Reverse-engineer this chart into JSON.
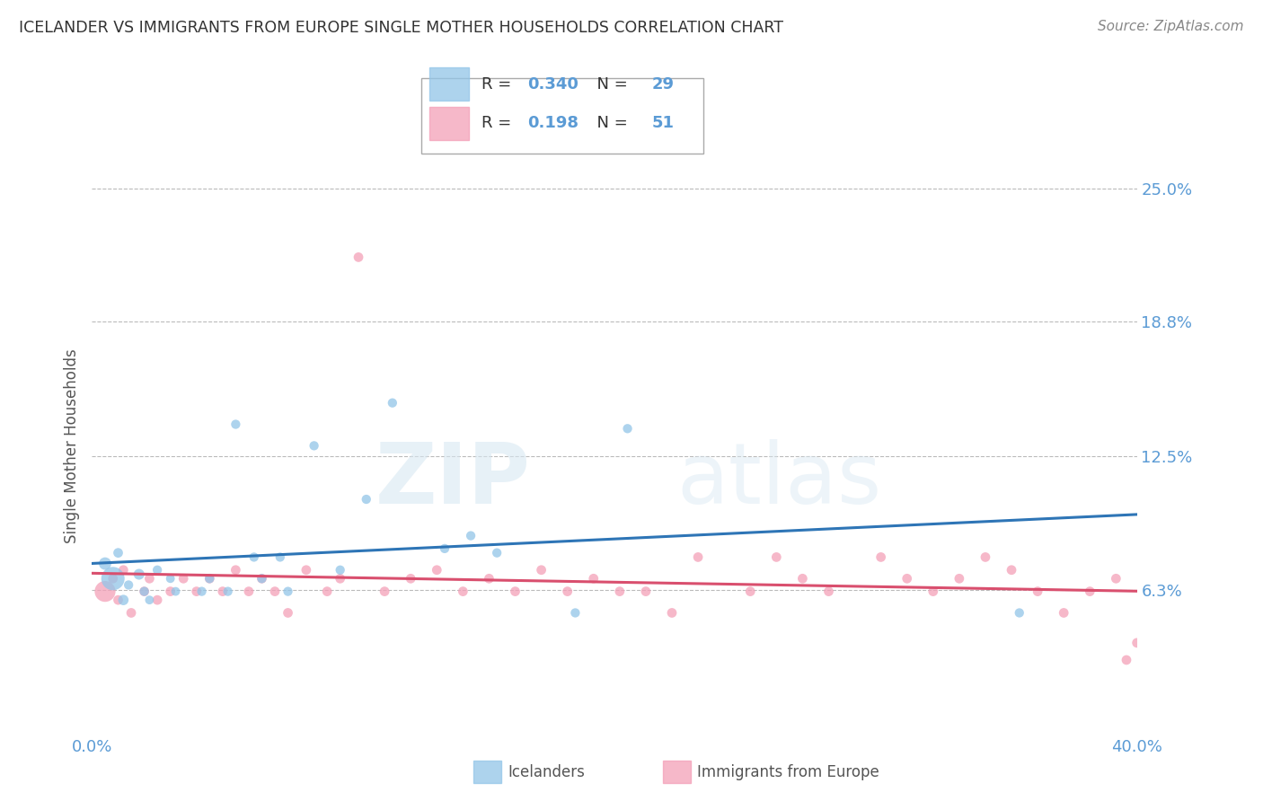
{
  "title": "ICELANDER VS IMMIGRANTS FROM EUROPE SINGLE MOTHER HOUSEHOLDS CORRELATION CHART",
  "source": "Source: ZipAtlas.com",
  "ylabel": "Single Mother Households",
  "xlim": [
    0.0,
    0.4
  ],
  "ylim": [
    -0.005,
    0.265
  ],
  "ytick_vals": [
    0.0625,
    0.125,
    0.188,
    0.25
  ],
  "ytick_labels": [
    "6.3%",
    "12.5%",
    "18.8%",
    "25.0%"
  ],
  "xtick_vals": [
    0.0,
    0.1,
    0.2,
    0.3,
    0.4
  ],
  "xtick_labels": [
    "0.0%",
    "",
    "",
    "",
    "40.0%"
  ],
  "r_icelanders": 0.34,
  "n_icelanders": 29,
  "r_immigrants": 0.198,
  "n_immigrants": 51,
  "icelanders_color": "#92C5E8",
  "immigrants_color": "#F4A0B8",
  "trend_icelanders_color": "#2E75B6",
  "trend_immigrants_color": "#D94F6E",
  "background_color": "#FFFFFF",
  "watermark": "ZIPatlas",
  "icelanders_x": [
    0.005,
    0.008,
    0.01,
    0.012,
    0.014,
    0.018,
    0.02,
    0.022,
    0.025,
    0.03,
    0.032,
    0.042,
    0.045,
    0.052,
    0.055,
    0.062,
    0.065,
    0.072,
    0.075,
    0.085,
    0.095,
    0.105,
    0.115,
    0.135,
    0.145,
    0.155,
    0.185,
    0.205,
    0.355
  ],
  "icelanders_y": [
    0.075,
    0.068,
    0.08,
    0.058,
    0.065,
    0.07,
    0.062,
    0.058,
    0.072,
    0.068,
    0.062,
    0.062,
    0.068,
    0.062,
    0.14,
    0.078,
    0.068,
    0.078,
    0.062,
    0.13,
    0.072,
    0.105,
    0.15,
    0.082,
    0.088,
    0.08,
    0.052,
    0.138,
    0.052
  ],
  "icelanders_size": [
    100,
    350,
    60,
    70,
    55,
    75,
    55,
    50,
    55,
    50,
    50,
    55,
    55,
    55,
    55,
    55,
    55,
    55,
    55,
    55,
    55,
    55,
    55,
    55,
    55,
    55,
    55,
    55,
    55
  ],
  "immigrants_x": [
    0.005,
    0.008,
    0.01,
    0.012,
    0.015,
    0.02,
    0.022,
    0.025,
    0.03,
    0.035,
    0.04,
    0.045,
    0.05,
    0.055,
    0.06,
    0.065,
    0.07,
    0.075,
    0.082,
    0.09,
    0.095,
    0.102,
    0.112,
    0.122,
    0.132,
    0.142,
    0.152,
    0.162,
    0.172,
    0.182,
    0.192,
    0.202,
    0.212,
    0.222,
    0.232,
    0.252,
    0.262,
    0.272,
    0.282,
    0.302,
    0.312,
    0.322,
    0.332,
    0.342,
    0.352,
    0.362,
    0.372,
    0.382,
    0.392,
    0.396,
    0.4
  ],
  "immigrants_y": [
    0.062,
    0.068,
    0.058,
    0.072,
    0.052,
    0.062,
    0.068,
    0.058,
    0.062,
    0.068,
    0.062,
    0.068,
    0.062,
    0.072,
    0.062,
    0.068,
    0.062,
    0.052,
    0.072,
    0.062,
    0.068,
    0.218,
    0.062,
    0.068,
    0.072,
    0.062,
    0.068,
    0.062,
    0.072,
    0.062,
    0.068,
    0.062,
    0.062,
    0.052,
    0.078,
    0.062,
    0.078,
    0.068,
    0.062,
    0.078,
    0.068,
    0.062,
    0.068,
    0.078,
    0.072,
    0.062,
    0.052,
    0.062,
    0.068,
    0.03,
    0.038
  ],
  "immigrants_size": [
    280,
    60,
    60,
    60,
    60,
    60,
    60,
    60,
    60,
    60,
    60,
    60,
    60,
    60,
    60,
    60,
    60,
    60,
    60,
    60,
    60,
    60,
    60,
    60,
    60,
    60,
    60,
    60,
    60,
    60,
    60,
    60,
    60,
    60,
    60,
    60,
    60,
    60,
    60,
    60,
    60,
    60,
    60,
    60,
    60,
    60,
    60,
    60,
    60,
    60,
    60
  ]
}
